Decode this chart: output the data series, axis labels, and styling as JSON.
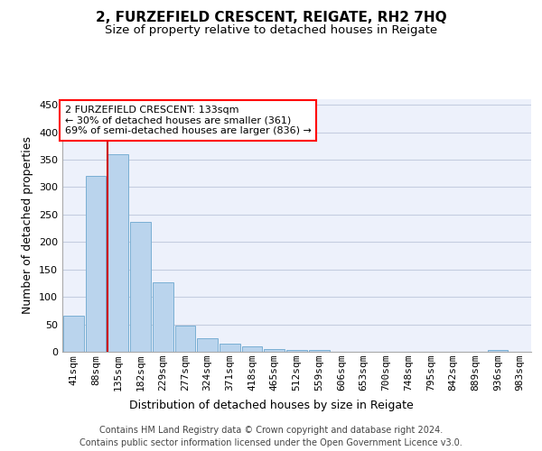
{
  "title": "2, FURZEFIELD CRESCENT, REIGATE, RH2 7HQ",
  "subtitle": "Size of property relative to detached houses in Reigate",
  "xlabel": "Distribution of detached houses by size in Reigate",
  "ylabel": "Number of detached properties",
  "footer_line1": "Contains HM Land Registry data © Crown copyright and database right 2024.",
  "footer_line2": "Contains public sector information licensed under the Open Government Licence v3.0.",
  "bar_values": [
    65,
    320,
    360,
    236,
    127,
    48,
    25,
    15,
    10,
    5,
    3,
    3,
    0,
    0,
    0,
    0,
    0,
    0,
    0,
    3,
    0
  ],
  "bar_labels": [
    "41sqm",
    "88sqm",
    "135sqm",
    "182sqm",
    "229sqm",
    "277sqm",
    "324sqm",
    "371sqm",
    "418sqm",
    "465sqm",
    "512sqm",
    "559sqm",
    "606sqm",
    "653sqm",
    "700sqm",
    "748sqm",
    "795sqm",
    "842sqm",
    "889sqm",
    "936sqm",
    "983sqm"
  ],
  "bar_color": "#bad4ed",
  "bar_edge_color": "#7aafd4",
  "annotation_text": "2 FURZEFIELD CRESCENT: 133sqm\n← 30% of detached houses are smaller (361)\n69% of semi-detached houses are larger (836) →",
  "vline_color": "#cc0000",
  "ylim": [
    0,
    460
  ],
  "yticks": [
    0,
    50,
    100,
    150,
    200,
    250,
    300,
    350,
    400,
    450
  ],
  "background_color": "#edf1fb",
  "grid_color": "#c5cde0",
  "title_fontsize": 11,
  "subtitle_fontsize": 9.5,
  "axis_label_fontsize": 9,
  "tick_fontsize": 8,
  "footer_fontsize": 7
}
